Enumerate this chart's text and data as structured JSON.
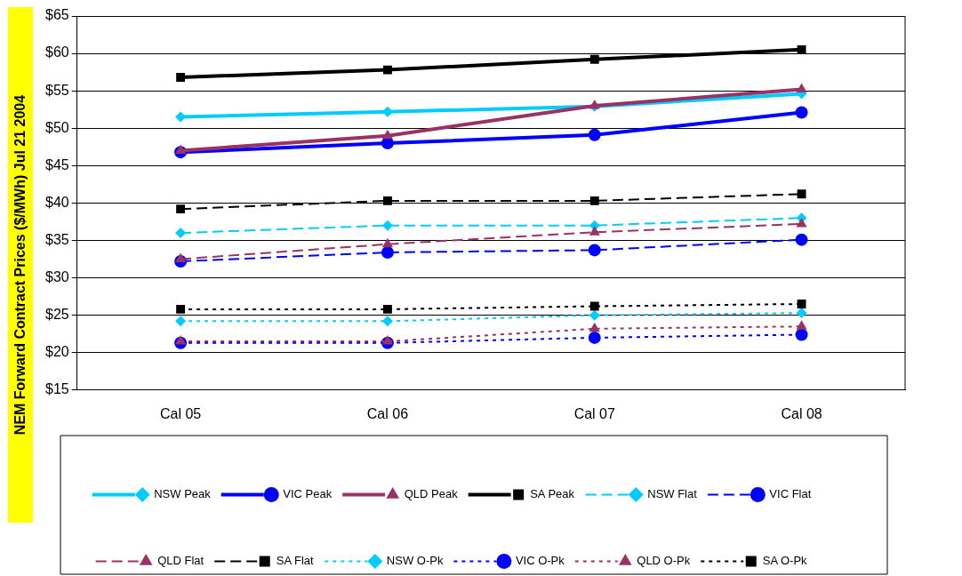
{
  "chart_data": {
    "type": "line",
    "ylabel": "NEM Forward Contract Prices ($/MWh)  Jul 21 2004",
    "categories": [
      "Cal 05",
      "Cal 06",
      "Cal 07",
      "Cal 08"
    ],
    "ylim": [
      15,
      65
    ],
    "yticks": [
      {
        "value": 15,
        "label": "$15"
      },
      {
        "value": 20,
        "label": "$20"
      },
      {
        "value": 25,
        "label": "$25"
      },
      {
        "value": 30,
        "label": "$30"
      },
      {
        "value": 35,
        "label": "$35"
      },
      {
        "value": 40,
        "label": "$40"
      },
      {
        "value": 45,
        "label": "$45"
      },
      {
        "value": 50,
        "label": "$50"
      },
      {
        "value": 55,
        "label": "$55"
      },
      {
        "value": 60,
        "label": "$60"
      },
      {
        "value": 65,
        "label": "$65"
      }
    ],
    "grid": "y",
    "legend": "bottom",
    "series": [
      {
        "name": "NSW Peak",
        "color": "#00ccff",
        "marker": "diamond",
        "line_style": "solid",
        "values": [
          51.5,
          52.2,
          52.9,
          54.6
        ]
      },
      {
        "name": "VIC Peak",
        "color": "#0000ff",
        "marker": "circle",
        "line_style": "solid",
        "values": [
          46.8,
          48.0,
          49.1,
          52.1
        ]
      },
      {
        "name": "QLD Peak",
        "color": "#993366",
        "marker": "triangle",
        "line_style": "solid",
        "values": [
          47.0,
          49.0,
          53.0,
          55.2
        ]
      },
      {
        "name": "SA Peak",
        "color": "#000000",
        "marker": "square",
        "line_style": "solid",
        "values": [
          56.8,
          57.8,
          59.2,
          60.5
        ]
      },
      {
        "name": "NSW Flat",
        "color": "#00ccff",
        "marker": "diamond",
        "line_style": "dashed",
        "values": [
          36.0,
          37.0,
          37.0,
          38.0
        ]
      },
      {
        "name": "VIC Flat",
        "color": "#0000ff",
        "marker": "circle",
        "line_style": "dashed",
        "values": [
          32.2,
          33.4,
          33.7,
          35.1
        ]
      },
      {
        "name": "QLD Flat",
        "color": "#993366",
        "marker": "triangle",
        "line_style": "dashed",
        "values": [
          32.5,
          34.5,
          36.1,
          37.2
        ]
      },
      {
        "name": "SA Flat",
        "color": "#000000",
        "marker": "square",
        "line_style": "dashed",
        "values": [
          39.2,
          40.3,
          40.3,
          41.2
        ]
      },
      {
        "name": "NSW O-Pk",
        "color": "#00ccff",
        "marker": "diamond",
        "line_style": "dotted",
        "values": [
          24.2,
          24.2,
          25.0,
          25.3
        ]
      },
      {
        "name": "VIC O-Pk",
        "color": "#0000ff",
        "marker": "circle",
        "line_style": "dotted",
        "values": [
          21.3,
          21.3,
          22.0,
          22.4
        ]
      },
      {
        "name": "QLD O-Pk",
        "color": "#993366",
        "marker": "triangle",
        "line_style": "dotted",
        "values": [
          21.5,
          21.5,
          23.2,
          23.5
        ]
      },
      {
        "name": "SA O-Pk",
        "color": "#000000",
        "marker": "square",
        "line_style": "dotted",
        "values": [
          25.8,
          25.8,
          26.2,
          26.5
        ]
      }
    ]
  }
}
